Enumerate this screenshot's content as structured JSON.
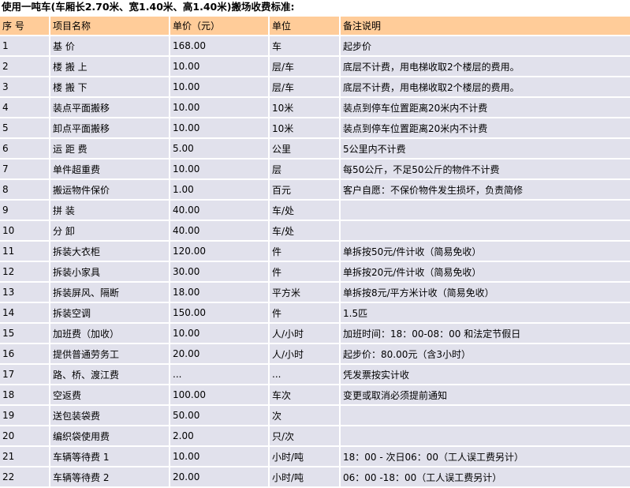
{
  "title": "使用一吨车(车厢长2.70米、宽1.40米、高1.40米)搬场收费标准:",
  "colors": {
    "header_bg": "#ffcc99",
    "row_bg": "#e1e1ec"
  },
  "headers": [
    "序 号",
    "项目名称",
    "单价（元）",
    "单位",
    "备注说明"
  ],
  "rows": [
    [
      "1",
      "基 价",
      "168.00",
      "车",
      "起步价"
    ],
    [
      "2",
      "楼 搬 上",
      "10.00",
      "层/车",
      "底层不计费，用电梯收取2个楼层的费用。"
    ],
    [
      "3",
      "楼 搬 下",
      "10.00",
      "层/车",
      "底层不计费，用电梯收取2个楼层的费用。"
    ],
    [
      "4",
      "装点平面搬移",
      "10.00",
      "10米",
      "装点到停车位置距离20米内不计费"
    ],
    [
      "5",
      "卸点平面搬移",
      "10.00",
      "10米",
      "装点到停车位置距离20米内不计费"
    ],
    [
      "6",
      "运 距 费",
      "5.00",
      "公里",
      "5公里内不计费"
    ],
    [
      "7",
      "单件超重费",
      "10.00",
      "层",
      "每50公斤，不足50公斤的物件不计费"
    ],
    [
      "8",
      "搬运物件保价",
      "1.00",
      "百元",
      "客户自愿：不保价物件发生损坏，负责简修"
    ],
    [
      "9",
      "拼 装",
      "40.00",
      "车/处",
      ""
    ],
    [
      "10",
      "分 卸",
      "40.00",
      "车/处",
      ""
    ],
    [
      "11",
      "拆装大衣柜",
      "120.00",
      "件",
      "单拆按50元/件计收（简易免收）"
    ],
    [
      "12",
      "拆装小家具",
      "30.00",
      "件",
      "单拆按20元/件计收（简易免收）"
    ],
    [
      "13",
      "拆装屏风、隔断",
      "18.00",
      "平方米",
      "单拆按8元/平方米计收（简易免收）"
    ],
    [
      "14",
      "拆装空调",
      "150.00",
      "件",
      "1.5匹"
    ],
    [
      "15",
      "加班费（加收）",
      "10.00",
      "人/小时",
      "加班时间：18：00-08：00 和法定节假日"
    ],
    [
      "16",
      "提供普通劳务工",
      "20.00",
      "人/小时",
      "起步价：80.00元（含3小时）"
    ],
    [
      "17",
      "路、桥、渡江费",
      "...",
      "...",
      "凭发票按实计收"
    ],
    [
      "18",
      "空返费",
      "100.00",
      "车次",
      "变更或取消必须提前通知"
    ],
    [
      "19",
      "送包装袋费",
      "50.00",
      "次",
      ""
    ],
    [
      "20",
      "编织袋使用费",
      "2.00",
      "只/次",
      ""
    ],
    [
      "21",
      "车辆等待费 1",
      "10.00",
      "小时/吨",
      "18：00 - 次日06：00（工人误工费另计）"
    ],
    [
      "22",
      "车辆等待费 2",
      "20.00",
      "小时/吨",
      "06：00 -18：00（工人误工费另计）"
    ]
  ]
}
